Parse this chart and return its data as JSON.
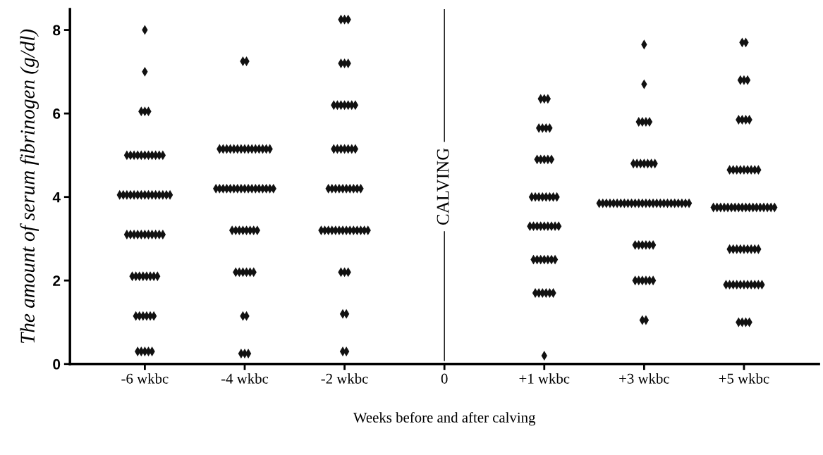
{
  "chart_data": {
    "type": "scatter",
    "xlabel": "Weeks before and after calving",
    "ylabel": "The amount of serum fibrinogen (g/dl)",
    "categories": [
      "-6 wkbc",
      "-4 wkbc",
      "-2 wkbc",
      "0",
      "+1 wkbc",
      "+3 wkbc",
      "+5 wkbc"
    ],
    "ylim": [
      0,
      8.5
    ],
    "yticks": [
      0,
      2,
      4,
      6,
      8
    ],
    "marker": "diamond",
    "grid": false,
    "ref_lines": [
      {
        "axis": "x",
        "value": "0",
        "label": "CALVING",
        "color": "#000000"
      }
    ],
    "series": [
      {
        "color": "#111111",
        "x": [
          "-6 wkbc",
          "-6 wkbc",
          "-6 wkbc",
          "-6 wkbc",
          "-6 wkbc",
          "-6 wkbc",
          "-6 wkbc",
          "-6 wkbc",
          "-6 wkbc",
          "-6 wkbc",
          "-6 wkbc",
          "-6 wkbc",
          "-6 wkbc",
          "-6 wkbc",
          "-6 wkbc",
          "-6 wkbc",
          "-6 wkbc",
          "-6 wkbc",
          "-6 wkbc",
          "-6 wkbc",
          "-6 wkbc",
          "-6 wkbc",
          "-6 wkbc",
          "-6 wkbc",
          "-6 wkbc",
          "-6 wkbc",
          "-6 wkbc",
          "-6 wkbc",
          "-6 wkbc",
          "-6 wkbc",
          "-6 wkbc",
          "-6 wkbc",
          "-6 wkbc",
          "-6 wkbc",
          "-6 wkbc",
          "-6 wkbc",
          "-6 wkbc",
          "-6 wkbc",
          "-6 wkbc",
          "-6 wkbc",
          "-6 wkbc",
          "-6 wkbc",
          "-6 wkbc",
          "-6 wkbc",
          "-6 wkbc",
          "-6 wkbc",
          "-6 wkbc",
          "-6 wkbc",
          "-6 wkbc",
          "-6 wkbc",
          "-6 wkbc",
          "-6 wkbc",
          "-6 wkbc",
          "-6 wkbc",
          "-6 wkbc",
          "-6 wkbc",
          "-6 wkbc",
          "-6 wkbc",
          "-6 wkbc",
          "-6 wkbc",
          "-6 wkbc"
        ],
        "values": [
          8.0,
          7.0,
          6.05,
          6.05,
          6.05,
          5.0,
          5.0,
          5.0,
          5.0,
          5.0,
          5.0,
          5.0,
          5.0,
          5.0,
          5.0,
          5.0,
          4.05,
          4.05,
          4.05,
          4.05,
          4.05,
          4.05,
          4.05,
          4.05,
          4.05,
          4.05,
          4.05,
          4.05,
          4.05,
          4.05,
          4.05,
          3.1,
          3.1,
          3.1,
          3.1,
          3.1,
          3.1,
          3.1,
          3.1,
          3.1,
          3.1,
          3.1,
          2.1,
          2.1,
          2.1,
          2.1,
          2.1,
          2.1,
          2.1,
          2.1,
          1.15,
          1.15,
          1.15,
          1.15,
          1.15,
          1.15,
          0.3,
          0.3,
          0.3,
          0.3,
          0.3
        ]
      },
      {
        "color": "#111111",
        "x": [
          "-4 wkbc",
          "-4 wkbc",
          "-4 wkbc",
          "-4 wkbc",
          "-4 wkbc",
          "-4 wkbc",
          "-4 wkbc",
          "-4 wkbc",
          "-4 wkbc",
          "-4 wkbc",
          "-4 wkbc",
          "-4 wkbc",
          "-4 wkbc",
          "-4 wkbc",
          "-4 wkbc",
          "-4 wkbc",
          "-4 wkbc",
          "-4 wkbc",
          "-4 wkbc",
          "-4 wkbc",
          "-4 wkbc",
          "-4 wkbc",
          "-4 wkbc",
          "-4 wkbc",
          "-4 wkbc",
          "-4 wkbc",
          "-4 wkbc",
          "-4 wkbc",
          "-4 wkbc",
          "-4 wkbc",
          "-4 wkbc",
          "-4 wkbc",
          "-4 wkbc",
          "-4 wkbc",
          "-4 wkbc",
          "-4 wkbc",
          "-4 wkbc",
          "-4 wkbc",
          "-4 wkbc",
          "-4 wkbc",
          "-4 wkbc",
          "-4 wkbc",
          "-4 wkbc",
          "-4 wkbc",
          "-4 wkbc",
          "-4 wkbc",
          "-4 wkbc",
          "-4 wkbc",
          "-4 wkbc",
          "-4 wkbc",
          "-4 wkbc",
          "-4 wkbc",
          "-4 wkbc"
        ],
        "values": [
          7.25,
          7.25,
          5.15,
          5.15,
          5.15,
          5.15,
          5.15,
          5.15,
          5.15,
          5.15,
          5.15,
          5.15,
          5.15,
          5.15,
          5.15,
          5.15,
          5.15,
          4.2,
          4.2,
          4.2,
          4.2,
          4.2,
          4.2,
          4.2,
          4.2,
          4.2,
          4.2,
          4.2,
          4.2,
          4.2,
          4.2,
          4.2,
          4.2,
          4.2,
          3.2,
          3.2,
          3.2,
          3.2,
          3.2,
          3.2,
          3.2,
          3.2,
          2.2,
          2.2,
          2.2,
          2.2,
          2.2,
          2.2,
          1.15,
          1.15,
          0.25,
          0.25,
          0.25
        ]
      },
      {
        "color": "#111111",
        "x": [
          "-2 wkbc",
          "-2 wkbc",
          "-2 wkbc",
          "-2 wkbc",
          "-2 wkbc",
          "-2 wkbc",
          "-2 wkbc",
          "-2 wkbc",
          "-2 wkbc",
          "-2 wkbc",
          "-2 wkbc",
          "-2 wkbc",
          "-2 wkbc",
          "-2 wkbc",
          "-2 wkbc",
          "-2 wkbc",
          "-2 wkbc",
          "-2 wkbc",
          "-2 wkbc",
          "-2 wkbc",
          "-2 wkbc",
          "-2 wkbc",
          "-2 wkbc",
          "-2 wkbc",
          "-2 wkbc",
          "-2 wkbc",
          "-2 wkbc",
          "-2 wkbc",
          "-2 wkbc",
          "-2 wkbc",
          "-2 wkbc",
          "-2 wkbc",
          "-2 wkbc",
          "-2 wkbc",
          "-2 wkbc",
          "-2 wkbc",
          "-2 wkbc",
          "-2 wkbc",
          "-2 wkbc",
          "-2 wkbc",
          "-2 wkbc",
          "-2 wkbc",
          "-2 wkbc",
          "-2 wkbc",
          "-2 wkbc",
          "-2 wkbc",
          "-2 wkbc",
          "-2 wkbc",
          "-2 wkbc",
          "-2 wkbc",
          "-2 wkbc"
        ],
        "values": [
          8.25,
          8.25,
          8.25,
          7.2,
          7.2,
          7.2,
          6.2,
          6.2,
          6.2,
          6.2,
          6.2,
          6.2,
          6.2,
          5.15,
          5.15,
          5.15,
          5.15,
          5.15,
          5.15,
          5.15,
          4.2,
          4.2,
          4.2,
          4.2,
          4.2,
          4.2,
          4.2,
          4.2,
          4.2,
          4.2,
          3.2,
          3.2,
          3.2,
          3.2,
          3.2,
          3.2,
          3.2,
          3.2,
          3.2,
          3.2,
          3.2,
          3.2,
          3.2,
          3.2,
          2.2,
          2.2,
          2.2,
          1.2,
          1.2,
          0.3,
          0.3
        ]
      },
      {
        "color": "#111111",
        "x": [
          "+1 wkbc",
          "+1 wkbc",
          "+1 wkbc",
          "+1 wkbc",
          "+1 wkbc",
          "+1 wkbc",
          "+1 wkbc",
          "+1 wkbc",
          "+1 wkbc",
          "+1 wkbc",
          "+1 wkbc",
          "+1 wkbc",
          "+1 wkbc",
          "+1 wkbc",
          "+1 wkbc",
          "+1 wkbc",
          "+1 wkbc",
          "+1 wkbc",
          "+1 wkbc",
          "+1 wkbc",
          "+1 wkbc",
          "+1 wkbc",
          "+1 wkbc",
          "+1 wkbc",
          "+1 wkbc",
          "+1 wkbc",
          "+1 wkbc",
          "+1 wkbc",
          "+1 wkbc",
          "+1 wkbc",
          "+1 wkbc",
          "+1 wkbc",
          "+1 wkbc",
          "+1 wkbc",
          "+1 wkbc",
          "+1 wkbc",
          "+1 wkbc",
          "+1 wkbc",
          "+1 wkbc",
          "+1 wkbc",
          "+1 wkbc",
          "+1 wkbc",
          "+1 wkbc"
        ],
        "values": [
          6.35,
          6.35,
          6.35,
          5.65,
          5.65,
          5.65,
          5.65,
          4.9,
          4.9,
          4.9,
          4.9,
          4.9,
          4.0,
          4.0,
          4.0,
          4.0,
          4.0,
          4.0,
          4.0,
          4.0,
          3.3,
          3.3,
          3.3,
          3.3,
          3.3,
          3.3,
          3.3,
          3.3,
          3.3,
          2.5,
          2.5,
          2.5,
          2.5,
          2.5,
          2.5,
          2.5,
          1.7,
          1.7,
          1.7,
          1.7,
          1.7,
          1.7,
          0.2
        ]
      },
      {
        "color": "#111111",
        "x": [
          "+3 wkbc",
          "+3 wkbc",
          "+3 wkbc",
          "+3 wkbc",
          "+3 wkbc",
          "+3 wkbc",
          "+3 wkbc",
          "+3 wkbc",
          "+3 wkbc",
          "+3 wkbc",
          "+3 wkbc",
          "+3 wkbc",
          "+3 wkbc",
          "+3 wkbc",
          "+3 wkbc",
          "+3 wkbc",
          "+3 wkbc",
          "+3 wkbc",
          "+3 wkbc",
          "+3 wkbc",
          "+3 wkbc",
          "+3 wkbc",
          "+3 wkbc",
          "+3 wkbc",
          "+3 wkbc",
          "+3 wkbc",
          "+3 wkbc",
          "+3 wkbc",
          "+3 wkbc",
          "+3 wkbc",
          "+3 wkbc",
          "+3 wkbc",
          "+3 wkbc",
          "+3 wkbc",
          "+3 wkbc",
          "+3 wkbc",
          "+3 wkbc",
          "+3 wkbc",
          "+3 wkbc",
          "+3 wkbc",
          "+3 wkbc",
          "+3 wkbc",
          "+3 wkbc",
          "+3 wkbc",
          "+3 wkbc",
          "+3 wkbc",
          "+3 wkbc",
          "+3 wkbc",
          "+3 wkbc",
          "+3 wkbc",
          "+3 wkbc",
          "+3 wkbc",
          "+3 wkbc"
        ],
        "values": [
          7.65,
          6.7,
          5.8,
          5.8,
          5.8,
          5.8,
          4.8,
          4.8,
          4.8,
          4.8,
          4.8,
          4.8,
          4.8,
          3.85,
          3.85,
          3.85,
          3.85,
          3.85,
          3.85,
          3.85,
          3.85,
          3.85,
          3.85,
          3.85,
          3.85,
          3.85,
          3.85,
          3.85,
          3.85,
          3.85,
          3.85,
          3.85,
          3.85,
          3.85,
          3.85,
          3.85,
          3.85,
          3.85,
          3.85,
          2.85,
          2.85,
          2.85,
          2.85,
          2.85,
          2.85,
          2.0,
          2.0,
          2.0,
          2.0,
          2.0,
          2.0,
          1.05,
          1.05
        ]
      },
      {
        "color": "#111111",
        "x": [
          "+5 wkbc",
          "+5 wkbc",
          "+5 wkbc",
          "+5 wkbc",
          "+5 wkbc",
          "+5 wkbc",
          "+5 wkbc",
          "+5 wkbc",
          "+5 wkbc",
          "+5 wkbc",
          "+5 wkbc",
          "+5 wkbc",
          "+5 wkbc",
          "+5 wkbc",
          "+5 wkbc",
          "+5 wkbc",
          "+5 wkbc",
          "+5 wkbc",
          "+5 wkbc",
          "+5 wkbc",
          "+5 wkbc",
          "+5 wkbc",
          "+5 wkbc",
          "+5 wkbc",
          "+5 wkbc",
          "+5 wkbc",
          "+5 wkbc",
          "+5 wkbc",
          "+5 wkbc",
          "+5 wkbc",
          "+5 wkbc",
          "+5 wkbc",
          "+5 wkbc",
          "+5 wkbc",
          "+5 wkbc",
          "+5 wkbc",
          "+5 wkbc",
          "+5 wkbc",
          "+5 wkbc",
          "+5 wkbc",
          "+5 wkbc",
          "+5 wkbc",
          "+5 wkbc",
          "+5 wkbc",
          "+5 wkbc",
          "+5 wkbc",
          "+5 wkbc",
          "+5 wkbc",
          "+5 wkbc",
          "+5 wkbc",
          "+5 wkbc",
          "+5 wkbc",
          "+5 wkbc",
          "+5 wkbc",
          "+5 wkbc",
          "+5 wkbc",
          "+5 wkbc",
          "+5 wkbc",
          "+5 wkbc",
          "+5 wkbc"
        ],
        "values": [
          7.7,
          7.7,
          6.8,
          6.8,
          6.8,
          5.85,
          5.85,
          5.85,
          5.85,
          4.65,
          4.65,
          4.65,
          4.65,
          4.65,
          4.65,
          4.65,
          4.65,
          4.65,
          3.75,
          3.75,
          3.75,
          3.75,
          3.75,
          3.75,
          3.75,
          3.75,
          3.75,
          3.75,
          3.75,
          3.75,
          3.75,
          3.75,
          3.75,
          3.75,
          3.75,
          3.75,
          2.75,
          2.75,
          2.75,
          2.75,
          2.75,
          2.75,
          2.75,
          2.75,
          2.75,
          1.9,
          1.9,
          1.9,
          1.9,
          1.9,
          1.9,
          1.9,
          1.9,
          1.9,
          1.9,
          1.9,
          1.0,
          1.0,
          1.0,
          1.0
        ]
      }
    ]
  }
}
